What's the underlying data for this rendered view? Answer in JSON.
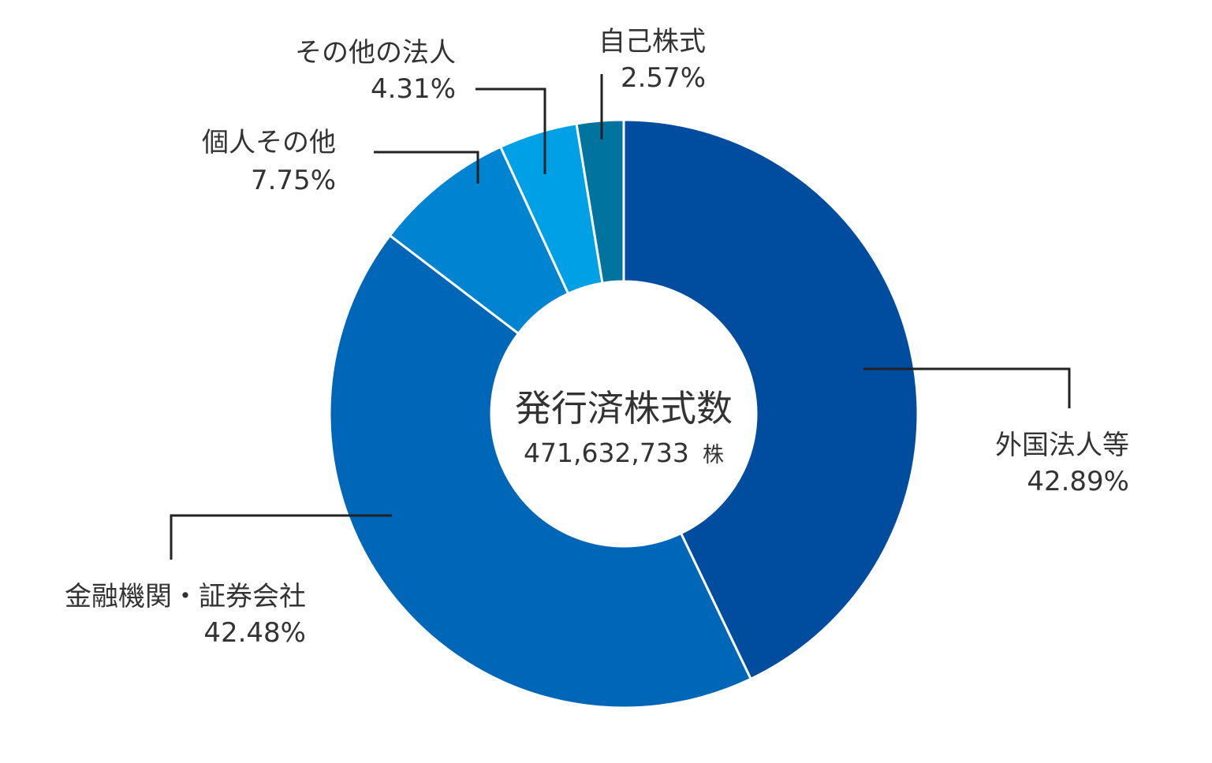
{
  "chart_data": {
    "type": "pie",
    "center": {
      "title": "発行済株式数",
      "total": "471,632,733",
      "unit": "株"
    },
    "slices": [
      {
        "name": "外国法人等",
        "value": 42.89,
        "label": "42.89%",
        "color": "#004c9e"
      },
      {
        "name": "金融機関・証券会社",
        "value": 42.48,
        "label": "42.48%",
        "color": "#0066b8"
      },
      {
        "name": "個人その他",
        "value": 7.75,
        "label": "7.75%",
        "color": "#0084d1"
      },
      {
        "name": "その他の法人",
        "value": 4.31,
        "label": "4.31%",
        "color": "#00a0e6"
      },
      {
        "name": "自己株式",
        "value": 2.57,
        "label": "2.57%",
        "color": "#00739f"
      }
    ]
  }
}
